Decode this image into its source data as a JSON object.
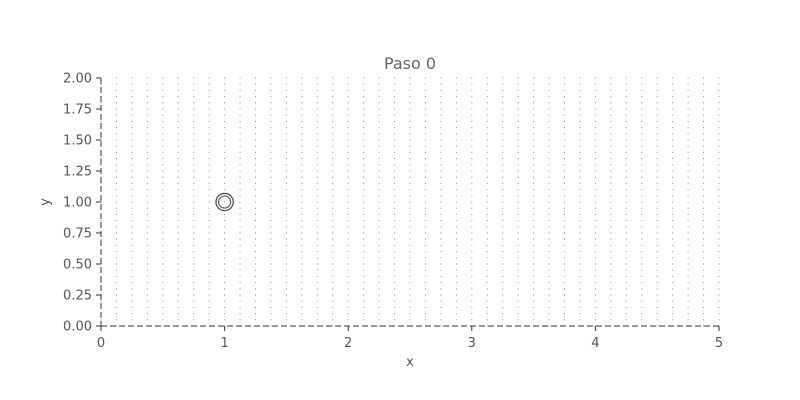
{
  "chart_data": {
    "type": "scatter",
    "title": "Paso 0",
    "xlabel": "x",
    "ylabel": "y",
    "xlim": [
      0,
      5
    ],
    "ylim": [
      0,
      2
    ],
    "xticks": [
      0,
      1,
      2,
      3,
      4,
      5
    ],
    "xtick_labels": [
      "0",
      "1",
      "2",
      "3",
      "4",
      "5"
    ],
    "yticks": [
      0,
      0.25,
      0.5,
      0.75,
      1.0,
      1.25,
      1.5,
      1.75,
      2.0
    ],
    "ytick_labels": [
      "0.00",
      "0.25",
      "0.50",
      "0.75",
      "1.00",
      "1.25",
      "1.50",
      "1.75",
      "2.00"
    ],
    "grid": false,
    "colors": {
      "text": "#555555",
      "axis": "#333333",
      "marker": "#888888",
      "obstacle": "#444444"
    },
    "series": [
      {
        "kind": "grid-points",
        "x_columns": [
          0.0,
          0.125,
          0.25,
          0.375,
          0.5,
          0.625,
          0.75,
          0.875,
          1.0,
          1.125,
          1.25,
          1.375,
          1.5,
          1.625,
          1.75,
          1.875,
          2.0,
          2.125,
          2.25,
          2.375,
          2.5,
          2.625,
          2.75,
          2.875,
          3.0,
          3.125,
          3.25,
          3.375,
          3.5,
          3.625,
          3.75,
          3.875,
          4.0,
          4.125,
          4.25,
          4.375,
          4.5,
          4.625,
          4.75,
          4.875,
          5.0
        ],
        "y_rows": [
          0.0,
          0.05,
          0.1,
          0.15,
          0.2,
          0.25,
          0.3,
          0.35,
          0.4,
          0.45,
          0.5,
          0.55,
          0.6,
          0.65,
          0.7,
          0.75,
          0.8,
          0.85,
          0.9,
          0.95,
          1.0,
          1.05,
          1.1,
          1.15,
          1.2,
          1.25,
          1.3,
          1.35,
          1.4,
          1.45,
          1.5,
          1.55,
          1.6,
          1.65,
          1.7,
          1.75,
          1.8,
          1.85,
          1.9,
          1.95,
          2.0
        ]
      },
      {
        "kind": "circle",
        "center": [
          1.0,
          1.0
        ],
        "radius": 0.07
      }
    ]
  }
}
